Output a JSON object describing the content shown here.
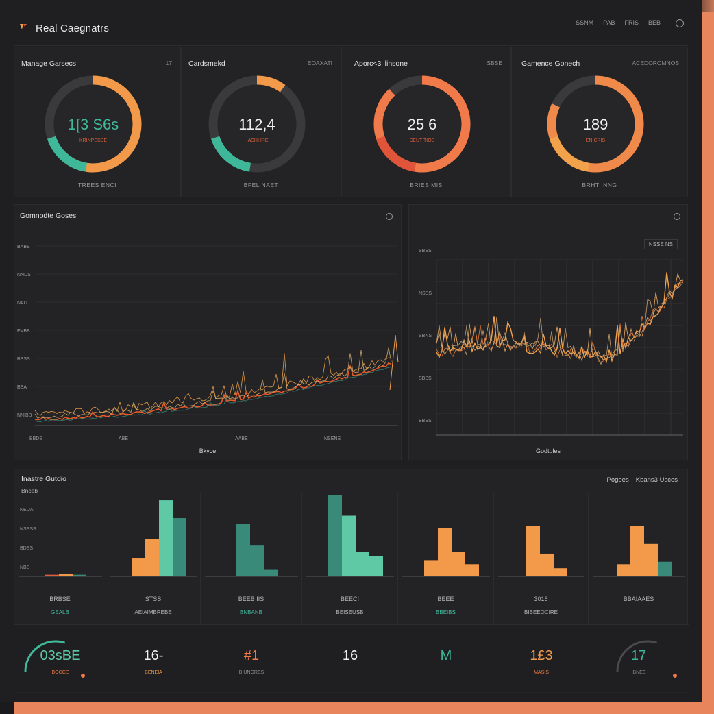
{
  "app": {
    "title": "Real Caegnatrs"
  },
  "header": {
    "links": [
      "SSNM",
      "PAB",
      "FRIS",
      "BEB"
    ]
  },
  "kpis": [
    {
      "title": "Manage Garsecs",
      "meta": "17",
      "value": "1[3 S6s",
      "label": "KRINPESSE",
      "sub": "TREES   ENCI",
      "fraction": 0.62,
      "color": "#f29a4a",
      "accent": "#3fb89a"
    },
    {
      "title": "Cardsmekd",
      "meta": "EOAXATI",
      "value": "112,4",
      "label": "HASHI IREI",
      "sub": "BFEL   NAET",
      "fraction": 0.1,
      "color": "#f29a4a",
      "accent": "#3fb89a"
    },
    {
      "title": "Aporc<3l linsone",
      "meta": "SBSE",
      "value": "25 6",
      "label": "SEUT TIOS",
      "sub": "BRIES   MIS",
      "fraction": 0.88,
      "color": "#f07a4a",
      "accent": "#e0543a"
    },
    {
      "title": "Gamence Gonech",
      "meta": "ACEDOROMNOS",
      "value": "189",
      "label": "ENICRIS",
      "sub": "BRHT   INNG",
      "fraction": 0.82,
      "color": "#f08a4a",
      "accent": "#f2a24a"
    }
  ],
  "lineChartLeft": {
    "title": "Gomnodte Goses",
    "xlabel": "Bkyce",
    "yticks": [
      "BABE",
      "NNDS",
      "NAD",
      "EVBB",
      "BSSS",
      "BSA",
      "NNIBB"
    ],
    "xticks": [
      "BBDE",
      "ABE",
      "AABE",
      "NSENS"
    ]
  },
  "lineChartRight": {
    "title": "",
    "xlabel": "Godtbles",
    "legend": "NSSE NS",
    "yticks": [
      "SBSS",
      "NSSS",
      "SBNS",
      "SBSS",
      "BBSS"
    ]
  },
  "bottom": {
    "title": "Inastre Gutdio",
    "subtitle": "Bnceb",
    "links": [
      "Pogees",
      "Kbans3 Usces"
    ],
    "yticks": [
      "NEDA",
      "NSSSS",
      "BDSS",
      "NBS"
    ],
    "cells": [
      {
        "label": "BRBSE",
        "sub": "GEALB",
        "bars": [
          0.02,
          0.03,
          0.02
        ],
        "colors": [
          "#e0603a",
          "#f29a4a",
          "#3a8a7a"
        ]
      },
      {
        "label": "STSS",
        "sub": "AEIAIMBREBE",
        "bars": [
          0.22,
          0.46,
          0.94,
          0.72
        ],
        "colors": [
          "#f29a4a",
          "#f29a4a",
          "#5ec9a4",
          "#3a8a7a"
        ]
      },
      {
        "label": "BEEB IIS",
        "sub": "BNBANB",
        "bars": [
          0.65,
          0.38,
          0.08
        ],
        "colors": [
          "#3a8a7a",
          "#3a8a7a",
          "#3a8a7a"
        ]
      },
      {
        "label": "BEECI",
        "sub": "BEISEUSB",
        "bars": [
          1.0,
          0.75,
          0.3,
          0.25
        ],
        "colors": [
          "#3a8a7a",
          "#5ec9a4",
          "#5ec9a4",
          "#5ec9a4"
        ]
      },
      {
        "label": "BEEE",
        "sub": "BBEIBS",
        "bars": [
          0.2,
          0.6,
          0.3,
          0.15
        ],
        "colors": [
          "#f29a4a",
          "#f29a4a",
          "#f29a4a",
          "#f29a4a"
        ]
      },
      {
        "label": "3016",
        "sub": "BIBEEOCIRE",
        "bars": [
          0.62,
          0.28,
          0.1
        ],
        "colors": [
          "#f29a4a",
          "#f29a4a",
          "#f29a4a"
        ]
      },
      {
        "label": "BBAIAAES",
        "sub": "",
        "bars": [
          0.15,
          0.62,
          0.4,
          0.18
        ],
        "colors": [
          "#f29a4a",
          "#f29a4a",
          "#f29a4a",
          "#3a8a7a"
        ]
      }
    ],
    "minis": [
      {
        "value": "03sBE",
        "sub": "BOCCE",
        "arc": true,
        "color": "#5ec9a4",
        "subcolor": "#f07a4a"
      },
      {
        "value": "16-",
        "sub": "BENEIA",
        "arc": false,
        "color": "#f0f0f0",
        "subcolor": "#f29a4a"
      },
      {
        "value": "#1",
        "sub": "BIUNGRES",
        "arc": false,
        "color": "#f07a4a",
        "subcolor": "#8e8e8e"
      },
      {
        "value": "16",
        "sub": "",
        "arc": false,
        "color": "#f0f0f0",
        "subcolor": "#8e8e8e"
      },
      {
        "value": "M",
        "sub": "",
        "arc": false,
        "color": "#3fb89a",
        "subcolor": "#8e8e8e"
      },
      {
        "value": "1£3",
        "sub": "MASIS",
        "arc": false,
        "color": "#f29a4a",
        "subcolor": "#f07a4a"
      },
      {
        "value": "17",
        "sub": "IBNEE",
        "arc": true,
        "color": "#3fb89a",
        "subcolor": "#8e8e8e"
      }
    ]
  }
}
